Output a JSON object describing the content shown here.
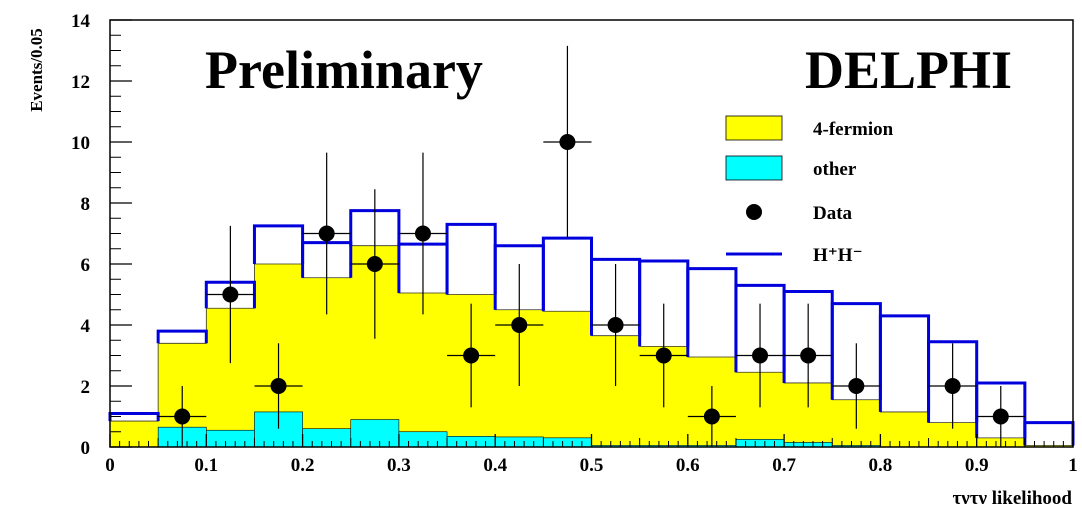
{
  "chart_data": {
    "type": "bar",
    "texts": {
      "preliminary": "Preliminary",
      "experiment": "DELPHI",
      "ylabel": "Events/0.05",
      "xlabel": "τντν likelihood"
    },
    "xlim": [
      0,
      1
    ],
    "ylim": [
      0,
      14
    ],
    "bin_width": 0.05,
    "bin_edges": [
      0,
      0.05,
      0.1,
      0.15,
      0.2,
      0.25,
      0.3,
      0.35,
      0.4,
      0.45,
      0.5,
      0.55,
      0.6,
      0.65,
      0.7,
      0.75,
      0.8,
      0.85,
      0.9,
      0.95,
      1.0
    ],
    "x_ticks": [
      "0",
      "0.1",
      "0.2",
      "0.3",
      "0.4",
      "0.5",
      "0.6",
      "0.7",
      "0.8",
      "0.9",
      "1"
    ],
    "x_tick_values": [
      0,
      0.1,
      0.2,
      0.3,
      0.4,
      0.5,
      0.6,
      0.7,
      0.8,
      0.9,
      1.0
    ],
    "y_ticks": [
      "0",
      "2",
      "4",
      "6",
      "8",
      "10",
      "12",
      "14"
    ],
    "y_tick_values": [
      0,
      2,
      4,
      6,
      8,
      10,
      12,
      14
    ],
    "series": [
      {
        "name": "4-fermion",
        "kind": "stacked_total",
        "color": "#ffff00",
        "values": [
          0.85,
          3.4,
          4.55,
          6.0,
          5.55,
          6.6,
          5.05,
          5.0,
          4.5,
          4.45,
          3.65,
          3.3,
          2.95,
          2.45,
          2.1,
          1.55,
          1.15,
          0.8,
          0.3,
          0.05
        ]
      },
      {
        "name": "other",
        "kind": "fill",
        "color": "#00ffff",
        "values": [
          0,
          0.65,
          0.55,
          1.15,
          0.6,
          0.9,
          0.5,
          0.35,
          0.33,
          0.3,
          0.05,
          0.05,
          0.05,
          0.25,
          0.15,
          0.05,
          0,
          0,
          0,
          0
        ]
      },
      {
        "name": "H⁺H⁻",
        "kind": "outline",
        "color": "#0000dd",
        "values": [
          1.1,
          3.8,
          5.4,
          7.25,
          6.7,
          7.75,
          6.65,
          7.3,
          6.6,
          6.85,
          6.15,
          6.1,
          5.85,
          5.3,
          5.1,
          4.7,
          4.3,
          3.45,
          2.1,
          0.8
        ]
      },
      {
        "name": "Data",
        "kind": "points",
        "color": "#000000",
        "points": [
          {
            "x": 0.075,
            "y": 1,
            "err_lo": 1,
            "err_hi": 1.0
          },
          {
            "x": 0.125,
            "y": 5,
            "err_lo": 2.25,
            "err_hi": 2.25
          },
          {
            "x": 0.175,
            "y": 2,
            "err_lo": 1.4,
            "err_hi": 1.4
          },
          {
            "x": 0.225,
            "y": 7,
            "err_lo": 2.65,
            "err_hi": 2.65
          },
          {
            "x": 0.275,
            "y": 6,
            "err_lo": 2.45,
            "err_hi": 2.45
          },
          {
            "x": 0.325,
            "y": 7,
            "err_lo": 2.65,
            "err_hi": 2.65
          },
          {
            "x": 0.375,
            "y": 3,
            "err_lo": 1.7,
            "err_hi": 1.7
          },
          {
            "x": 0.425,
            "y": 4,
            "err_lo": 2.0,
            "err_hi": 2.0
          },
          {
            "x": 0.475,
            "y": 10,
            "err_lo": 3.15,
            "err_hi": 3.15
          },
          {
            "x": 0.525,
            "y": 4,
            "err_lo": 2.0,
            "err_hi": 2.0
          },
          {
            "x": 0.575,
            "y": 3,
            "err_lo": 1.7,
            "err_hi": 1.7
          },
          {
            "x": 0.625,
            "y": 1,
            "err_lo": 1.0,
            "err_hi": 1.0
          },
          {
            "x": 0.675,
            "y": 3,
            "err_lo": 1.7,
            "err_hi": 1.7
          },
          {
            "x": 0.725,
            "y": 3,
            "err_lo": 1.7,
            "err_hi": 1.7
          },
          {
            "x": 0.775,
            "y": 2,
            "err_lo": 1.4,
            "err_hi": 1.4
          },
          {
            "x": 0.875,
            "y": 2,
            "err_lo": 1.4,
            "err_hi": 1.4
          },
          {
            "x": 0.925,
            "y": 1,
            "err_lo": 1.0,
            "err_hi": 1.0
          }
        ]
      }
    ],
    "legend": [
      {
        "label": "4-fermion",
        "marker": "box",
        "color": "#ffff00"
      },
      {
        "label": "other",
        "marker": "box",
        "color": "#00ffff"
      },
      {
        "label": "Data",
        "marker": "dot",
        "color": "#000000"
      },
      {
        "label": "H⁺H⁻",
        "marker": "line",
        "color": "#0000dd"
      }
    ],
    "legend_position": "right",
    "grid": false
  }
}
